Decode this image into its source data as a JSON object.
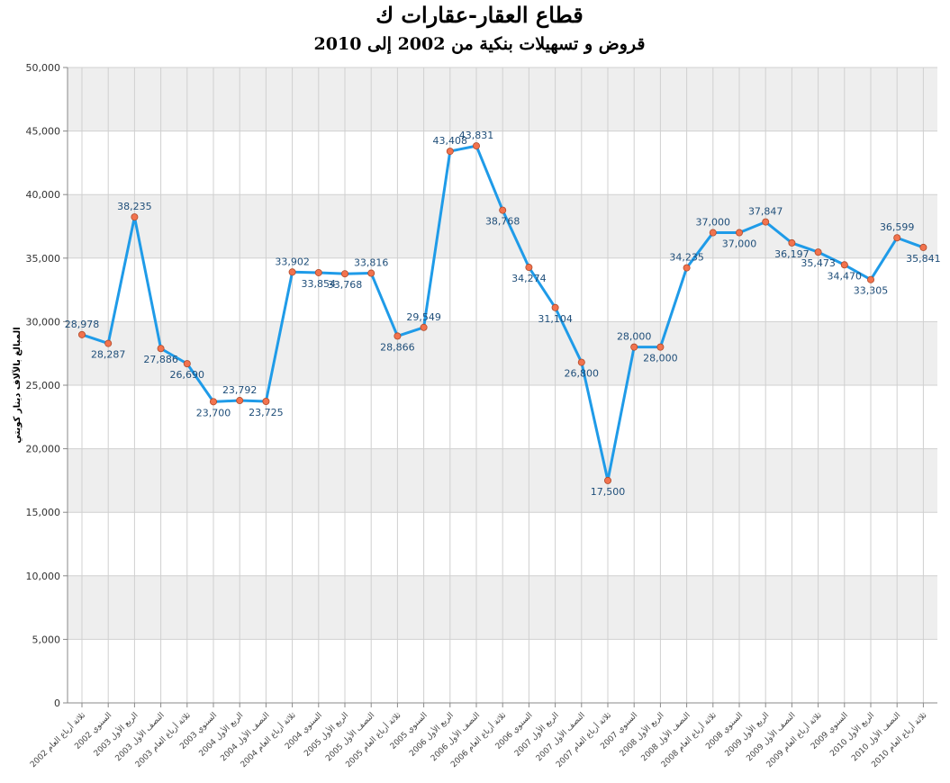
{
  "chart_data": {
    "type": "line",
    "title": "قطاع العقار-عقارات ك",
    "subtitle": "قروض و تسهيلات بنكية من 2002 إلى 2010",
    "ylabel": "المبالغ بالآلاف دينار كويتي",
    "xlabel": "",
    "ylim": [
      0,
      50000
    ],
    "yticks": [
      "0",
      "5,000",
      "10,000",
      "15,000",
      "20,000",
      "25,000",
      "30,000",
      "35,000",
      "40,000",
      "45,000",
      "50,000"
    ],
    "grid": true,
    "legend": "none",
    "line_color": "#1f9be8",
    "marker_color": "#f2734e",
    "band_color": "#eeeeee",
    "categories": [
      "ثلاثة أرباع العام 2002",
      "السنوي 2002",
      "الربع الأول 2003",
      "النصف الأول 2003",
      "ثلاثة أرباع العام 2003",
      "السنوي 2003",
      "الربع الأول 2004",
      "النصف الأول 2004",
      "ثلاثة أرباع العام 2004",
      "السنوي 2004",
      "الربع الأول 2005",
      "النصف الأول 2005",
      "ثلاثة أرباع العام 2005",
      "السنوي 2005",
      "الربع الأول 2006",
      "النصف الأول 2006",
      "ثلاثة أرباع العام 2006",
      "السنوي 2006",
      "الربع الأول 2007",
      "النصف الأول 2007",
      "ثلاثة أرباع العام 2007",
      "السنوي 2007",
      "الربع الأول 2008",
      "النصف الأول 2008",
      "ثلاثة أرباع العام 2008",
      "السنوي 2008",
      "الربع الأول 2009",
      "النصف الأول 2009",
      "ثلاثة أرباع العام 2009",
      "السنوي 2009",
      "الربع الأول 2010",
      "النصف الأول 2010",
      "ثلاثة أرباع العام 2010"
    ],
    "values": [
      28978,
      28287,
      38235,
      27886,
      26690,
      23700,
      23792,
      23725,
      33902,
      33854,
      33768,
      33816,
      28866,
      29549,
      43408,
      43831,
      38768,
      34274,
      31104,
      26800,
      17500,
      28000,
      28000,
      34235,
      37000,
      37000,
      37847,
      36197,
      35473,
      34470,
      33305,
      36599,
      35841
    ],
    "value_labels": [
      "28,978",
      "28,287",
      "38,235",
      "27,886",
      "26,690",
      "23,700",
      "23,792",
      "23,725",
      "33,902",
      "33,854",
      "33,768",
      "33,816",
      "28,866",
      "29,549",
      "43,408",
      "43,831",
      "38,768",
      "34,274",
      "31,104",
      "26,800",
      "17,500",
      "28,000",
      "28,000",
      "34,235",
      "37,000",
      "37,000",
      "37,847",
      "36,197",
      "35,473",
      "34,470",
      "33,305",
      "36,599",
      "35,841"
    ]
  }
}
